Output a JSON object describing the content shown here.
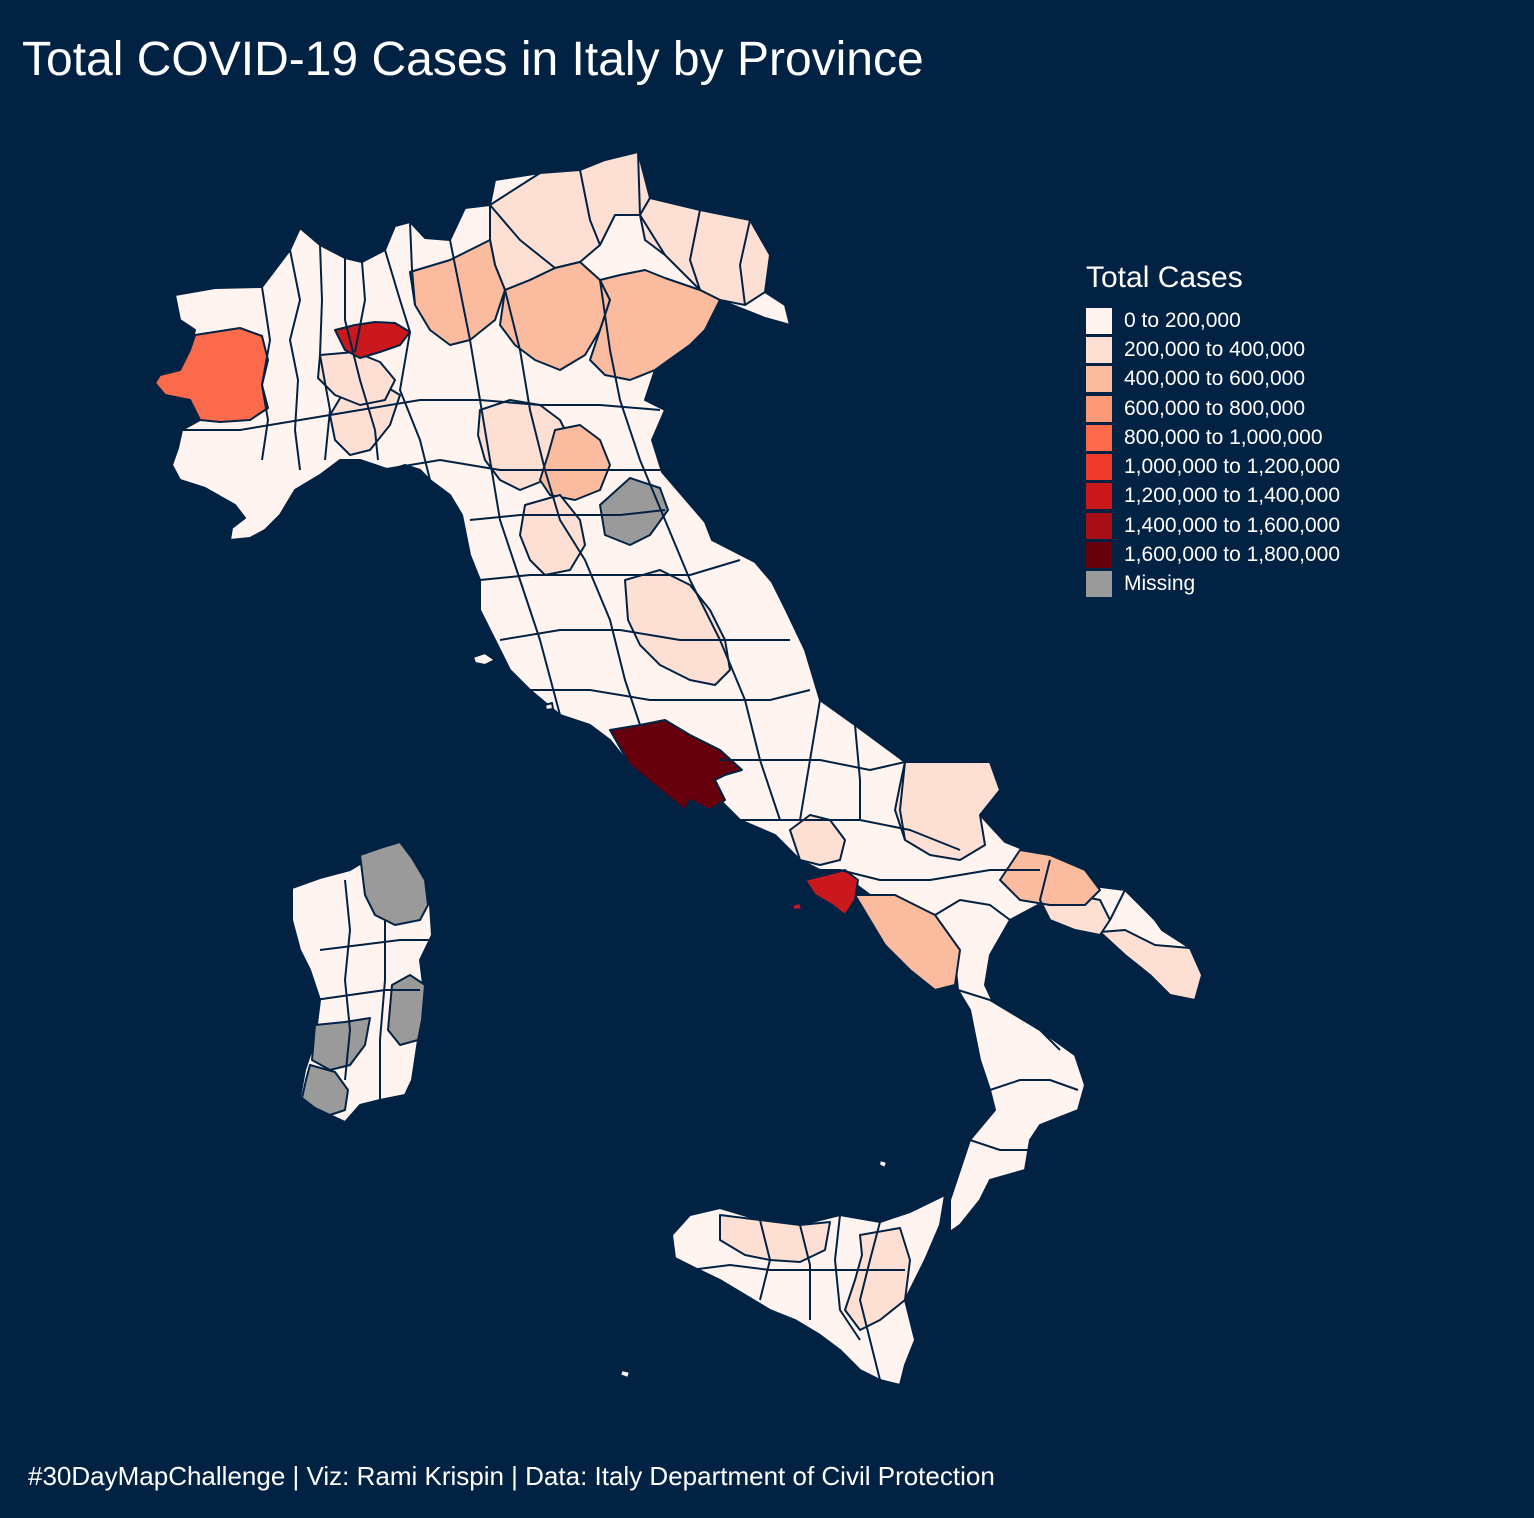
{
  "title": "Total COVID-19 Cases in Italy by Province",
  "caption": "#30DayMapChallenge | Viz: Rami Krispin | Data: Italy Department of Civil Protection",
  "colors": {
    "background": "#022244",
    "province_border": "#022244",
    "text": "#ffffff"
  },
  "legend": {
    "title": "Total Cases",
    "position": "right",
    "items": [
      {
        "key": "b0",
        "label": "0 to 200,000",
        "color": "#fff4f0"
      },
      {
        "key": "b1",
        "label": "200,000 to 400,000",
        "color": "#fde0d3"
      },
      {
        "key": "b2",
        "label": "400,000 to 600,000",
        "color": "#fbbb9f"
      },
      {
        "key": "b3",
        "label": "600,000 to 800,000",
        "color": "#fc9a78"
      },
      {
        "key": "b4",
        "label": "800,000 to 1,000,000",
        "color": "#fb6a4a"
      },
      {
        "key": "b5",
        "label": "1,000,000 to 1,200,000",
        "color": "#ef3b2c"
      },
      {
        "key": "b6",
        "label": "1,200,000 to 1,400,000",
        "color": "#cb181d"
      },
      {
        "key": "b7",
        "label": "1,400,000 to 1,600,000",
        "color": "#a50f15"
      },
      {
        "key": "b8",
        "label": "1,600,000 to 1,800,000",
        "color": "#67000d"
      },
      {
        "key": "missing",
        "label": "Missing",
        "color": "#9a9a9a"
      }
    ]
  },
  "map_data": {
    "type": "choropleth",
    "region": "Italy",
    "unit": "province",
    "variable": "Total Cases",
    "highlighted_bins": {
      "1,600,000 to 1,800,000": [
        "Roma"
      ],
      "1,200,000 to 1,400,000": [
        "Milano",
        "Napoli"
      ],
      "800,000 to 1,000,000": [
        "Torino"
      ],
      "Missing": [
        "Pesaro e Urbino",
        "Sassari",
        "Nuoro",
        "Oristano",
        "Sud Sardegna"
      ]
    }
  }
}
